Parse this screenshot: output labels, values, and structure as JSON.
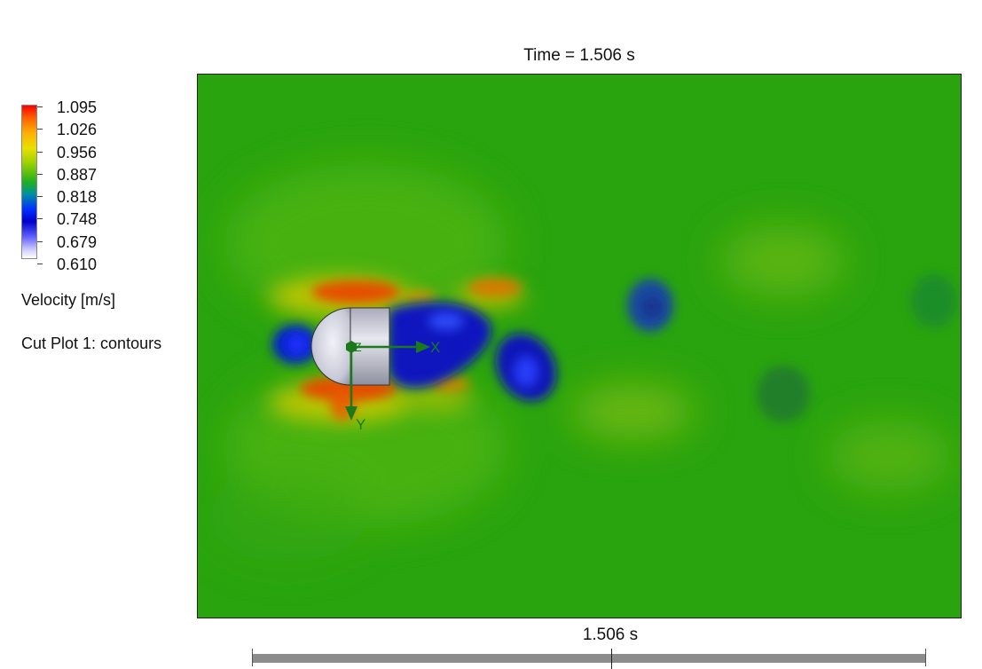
{
  "title": "Time = 1.506 s",
  "legend": {
    "ticks": [
      "1.095",
      "1.026",
      "0.956",
      "0.887",
      "0.818",
      "0.748",
      "0.679",
      "0.610"
    ],
    "max": 1.095,
    "min": 0.61,
    "quantity": "Velocity [m/s]",
    "plot_name": "Cut Plot 1: contours",
    "colors": {
      "high": "#ff0000",
      "mid": "#20b020",
      "low_blue": "#0000cc",
      "min": "#ffffff"
    }
  },
  "axes_triad": {
    "x_label": "X",
    "y_label": "Y",
    "z_label": "Z",
    "color": "#1a7a1a"
  },
  "timeline": {
    "current_time": "1.506 s"
  },
  "colors": {
    "background_flow": "#2aa40e",
    "body": "#c8cad8"
  }
}
